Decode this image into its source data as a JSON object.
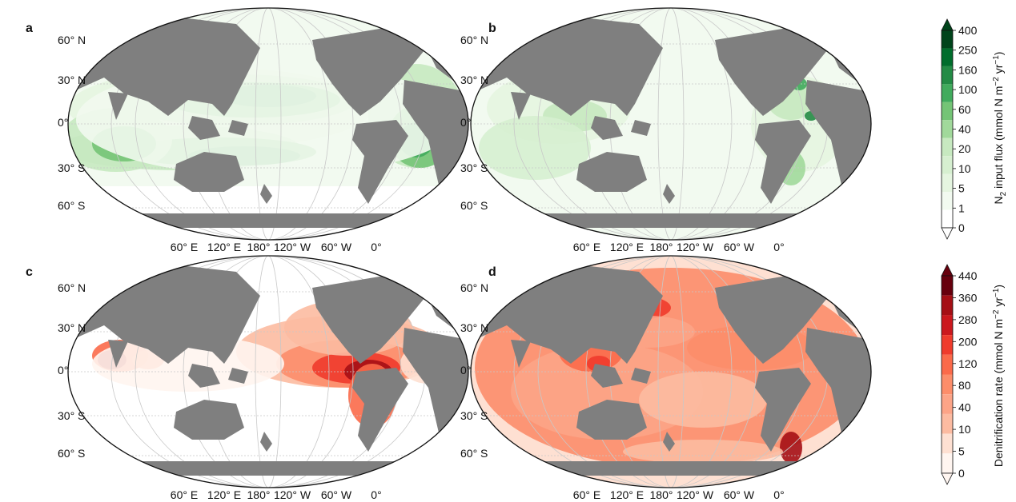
{
  "panels": [
    {
      "label": "a",
      "field": "n2_input_flux",
      "scenario": "distribution_a"
    },
    {
      "label": "b",
      "field": "n2_input_flux",
      "scenario": "distribution_b"
    },
    {
      "label": "c",
      "field": "denitrification_rate",
      "scenario": "distribution_c"
    },
    {
      "label": "d",
      "field": "denitrification_rate",
      "scenario": "distribution_d"
    }
  ],
  "lat_labels": [
    "60° N",
    "30° N",
    "0°",
    "30° S",
    "60° S"
  ],
  "lon_labels": [
    "60° E",
    "120° E",
    "180°",
    "120° W",
    "60° W",
    "0°"
  ],
  "colorbars": [
    {
      "id": "n2",
      "title_main": "N",
      "title_sub": "2",
      "title_rest": " input flux (mmol N m",
      "title_exp1": "−2",
      "title_mid": " yr",
      "title_exp2": "−1",
      "title_end": ")",
      "ticks": [
        "400",
        "250",
        "160",
        "100",
        "60",
        "40",
        "20",
        "10",
        "5",
        "1",
        "0"
      ],
      "colors": [
        "#00441b",
        "#006d2c",
        "#238b45",
        "#41ab5d",
        "#74c476",
        "#a1d99b",
        "#c7e9c0",
        "#d6efd0",
        "#e5f5e0",
        "#f2faf0",
        "#ffffff"
      ]
    },
    {
      "id": "denit",
      "title_main": "Denitrification rate (mmol N m",
      "title_exp1": "−2",
      "title_mid": " yr",
      "title_exp2": "−1",
      "title_end": ")",
      "ticks": [
        "440",
        "360",
        "280",
        "200",
        "120",
        "80",
        "40",
        "10",
        "5",
        "0"
      ],
      "colors": [
        "#67000d",
        "#a50f15",
        "#cb181d",
        "#ef3b2c",
        "#fb6a4a",
        "#fc8d6a",
        "#fca487",
        "#fcbba1",
        "#fee0d2",
        "#fff5f0"
      ]
    }
  ],
  "colors": {
    "land": "#7f7f7f",
    "ocean_blank": "#ffffff",
    "grid": "#c8c8c8"
  }
}
